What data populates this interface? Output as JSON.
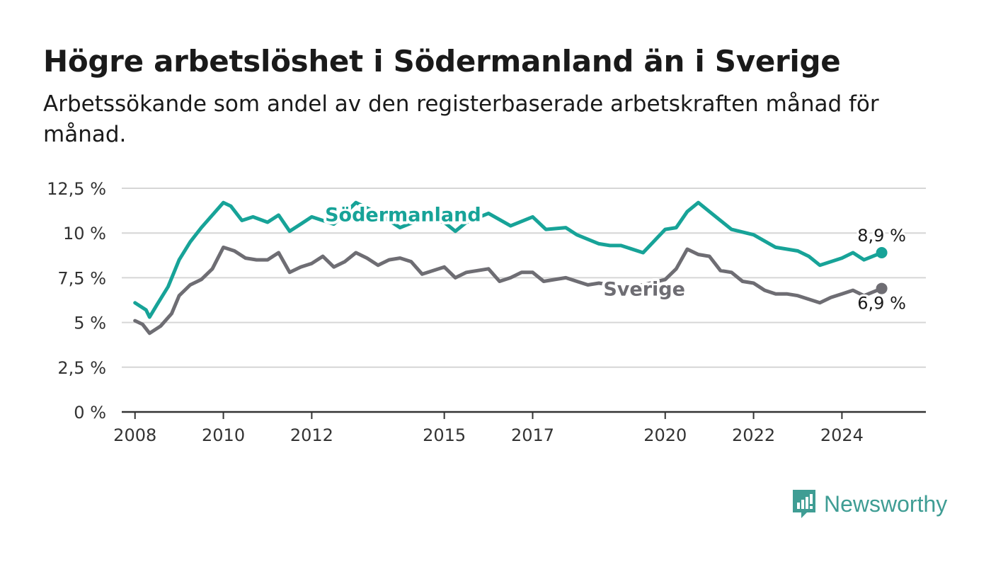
{
  "title": "Högre arbetslöshet i Södermanland än i Sverige",
  "subtitle": "Arbetssökande som andel av den registerbaserade arbetskraften månad för månad.",
  "brand": {
    "name": "Newsworthy",
    "color": "#3f9d94",
    "icon": "bar-chart-bubble-icon"
  },
  "chart_data": {
    "type": "line",
    "ylim": [
      0,
      12.5
    ],
    "xlim": [
      2007.7,
      2025.9
    ],
    "y_ticks": [
      0,
      2.5,
      5,
      7.5,
      10,
      12.5
    ],
    "y_tick_labels": [
      "0 %",
      "2,5 %",
      "5 %",
      "7,5 %",
      "10 %",
      "12,5 %"
    ],
    "x_ticks": [
      2008,
      2010,
      2012,
      2015,
      2017,
      2020,
      2022,
      2024
    ],
    "x_tick_labels": [
      "2008",
      "2010",
      "2012",
      "2015",
      "2017",
      "2020",
      "2022",
      "2024"
    ],
    "grid": true,
    "series": [
      {
        "name": "Södermanland",
        "color": "#17a398",
        "end_label": "8,9 %",
        "x": [
          2008.0,
          2008.25,
          2008.33,
          2008.5,
          2008.75,
          2009.0,
          2009.25,
          2009.5,
          2009.75,
          2010.0,
          2010.17,
          2010.42,
          2010.67,
          2011.0,
          2011.25,
          2011.5,
          2011.75,
          2012.0,
          2012.5,
          2013.0,
          2013.5,
          2014.0,
          2014.5,
          2015.0,
          2015.25,
          2015.5,
          2016.0,
          2016.5,
          2017.0,
          2017.3,
          2017.75,
          2018.0,
          2018.5,
          2018.75,
          2019.0,
          2019.5,
          2020.0,
          2020.25,
          2020.5,
          2020.75,
          2021.0,
          2021.5,
          2022.0,
          2022.5,
          2023.0,
          2023.25,
          2023.5,
          2024.0,
          2024.25,
          2024.5,
          2024.9
        ],
        "y": [
          6.1,
          5.7,
          5.3,
          6.0,
          7.0,
          8.5,
          9.5,
          10.3,
          11.0,
          11.7,
          11.5,
          10.7,
          10.9,
          10.6,
          11.0,
          10.1,
          10.5,
          10.9,
          10.5,
          11.7,
          11.1,
          10.3,
          10.8,
          10.6,
          10.1,
          10.6,
          11.1,
          10.4,
          10.9,
          10.2,
          10.3,
          9.9,
          9.4,
          9.3,
          9.3,
          8.9,
          10.2,
          10.3,
          11.2,
          11.7,
          11.2,
          10.2,
          9.9,
          9.2,
          9.0,
          8.7,
          8.2,
          8.6,
          8.9,
          8.5,
          8.9
        ]
      },
      {
        "name": "Sverige",
        "color": "#6e6d73",
        "end_label": "6,9 %",
        "x": [
          2008.0,
          2008.17,
          2008.33,
          2008.58,
          2008.83,
          2009.0,
          2009.25,
          2009.5,
          2009.75,
          2010.0,
          2010.25,
          2010.5,
          2010.75,
          2011.0,
          2011.25,
          2011.5,
          2011.75,
          2012.0,
          2012.25,
          2012.5,
          2012.75,
          2013.0,
          2013.25,
          2013.5,
          2013.75,
          2014.0,
          2014.25,
          2014.5,
          2014.75,
          2015.0,
          2015.25,
          2015.5,
          2015.75,
          2016.0,
          2016.25,
          2016.5,
          2016.75,
          2017.0,
          2017.25,
          2017.5,
          2017.75,
          2018.0,
          2018.25,
          2018.5,
          2019.0,
          2019.5,
          2020.0,
          2020.25,
          2020.5,
          2020.75,
          2021.0,
          2021.25,
          2021.5,
          2021.75,
          2022.0,
          2022.25,
          2022.5,
          2022.75,
          2023.0,
          2023.25,
          2023.5,
          2023.75,
          2024.0,
          2024.25,
          2024.5,
          2024.9
        ],
        "y": [
          5.1,
          4.9,
          4.4,
          4.8,
          5.5,
          6.5,
          7.1,
          7.4,
          8.0,
          9.2,
          9.0,
          8.6,
          8.5,
          8.5,
          8.9,
          7.8,
          8.1,
          8.3,
          8.7,
          8.1,
          8.4,
          8.9,
          8.6,
          8.2,
          8.5,
          8.6,
          8.4,
          7.7,
          7.9,
          8.1,
          7.5,
          7.8,
          7.9,
          8.0,
          7.3,
          7.5,
          7.8,
          7.8,
          7.3,
          7.4,
          7.5,
          7.3,
          7.1,
          7.2,
          7.0,
          7.1,
          7.4,
          8.0,
          9.1,
          8.8,
          8.7,
          7.9,
          7.8,
          7.3,
          7.2,
          6.8,
          6.6,
          6.6,
          6.5,
          6.3,
          6.1,
          6.4,
          6.6,
          6.8,
          6.5,
          6.9
        ]
      }
    ]
  }
}
